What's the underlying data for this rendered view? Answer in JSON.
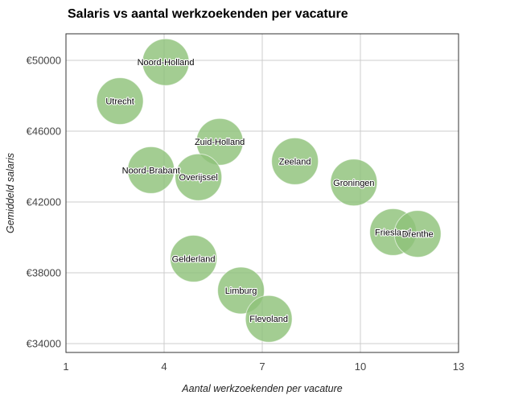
{
  "chart_data": {
    "type": "bubble",
    "title": "Salaris vs aantal werkzoekenden per vacature",
    "xlabel": "Aantal werkzoekenden per vacature",
    "ylabel": "Gemiddeld salaris",
    "xlim": [
      1,
      13
    ],
    "ylim": [
      33500,
      51500
    ],
    "xticks": [
      1,
      4,
      7,
      10,
      13
    ],
    "yticks": [
      34000,
      38000,
      42000,
      46000,
      50000
    ],
    "ytick_labels": [
      "€34000",
      "€38000",
      "€42000",
      "€46000",
      "€50000"
    ],
    "grid": true,
    "legend": "none",
    "color": "#8fc27a",
    "points": [
      {
        "label": "Noord-Holland",
        "x": 4.05,
        "y": 49900
      },
      {
        "label": "Utrecht",
        "x": 2.65,
        "y": 47700
      },
      {
        "label": "Zuid-Holland",
        "x": 5.7,
        "y": 45400
      },
      {
        "label": "Noord-Brabant",
        "x": 3.6,
        "y": 43800
      },
      {
        "label": "Overijssel",
        "x": 5.05,
        "y": 43400
      },
      {
        "label": "Zeeland",
        "x": 8.0,
        "y": 44300
      },
      {
        "label": "Groningen",
        "x": 9.8,
        "y": 43100
      },
      {
        "label": "Friesland",
        "x": 11.0,
        "y": 40300
      },
      {
        "label": "Drenthe",
        "x": 11.75,
        "y": 40200
      },
      {
        "label": "Gelderland",
        "x": 4.9,
        "y": 38800
      },
      {
        "label": "Limburg",
        "x": 6.35,
        "y": 37000
      },
      {
        "label": "Flevoland",
        "x": 7.2,
        "y": 35400
      }
    ]
  }
}
